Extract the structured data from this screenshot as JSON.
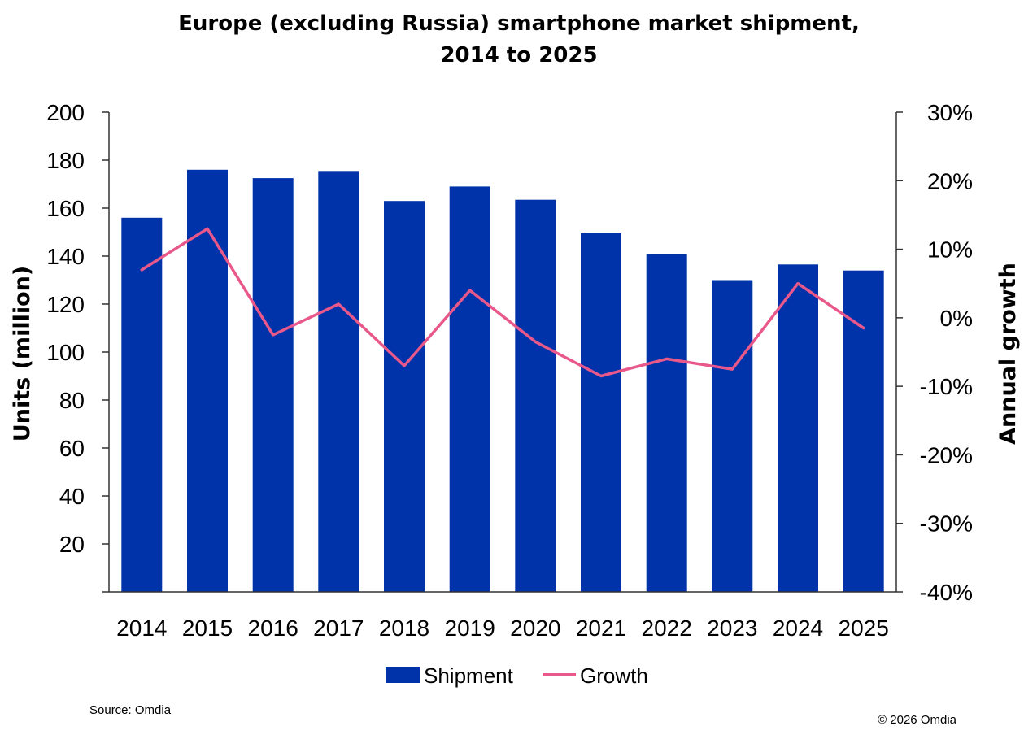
{
  "chart_data": {
    "type": "bar",
    "title_line1": "Europe (excluding Russia) smartphone market shipment,",
    "title_line2": "2014 to 2025",
    "categories": [
      "2014",
      "2015",
      "2016",
      "2017",
      "2018",
      "2019",
      "2020",
      "2021",
      "2022",
      "2023",
      "2024",
      "2025"
    ],
    "series": [
      {
        "name": "Shipment",
        "type": "bar",
        "axis": "left",
        "values": [
          156,
          176,
          172.5,
          175.5,
          163,
          169,
          163.5,
          149.5,
          141,
          130,
          136.5,
          134
        ]
      },
      {
        "name": "Growth",
        "type": "line",
        "axis": "right",
        "values": [
          7,
          13,
          -2.5,
          2,
          -7,
          4,
          -3.5,
          -8.5,
          -6,
          -7.5,
          5,
          -1.5
        ]
      }
    ],
    "ylabel": "Units (million)",
    "ylim": [
      0,
      200
    ],
    "y_ticks": [
      20,
      40,
      60,
      80,
      100,
      120,
      140,
      160,
      180,
      200
    ],
    "y2label": "Annual growth",
    "y2lim": [
      -40,
      30
    ],
    "y2_ticks": [
      -40,
      -30,
      -20,
      -10,
      0,
      10,
      20,
      30
    ],
    "y2_tick_labels": [
      "-40%",
      "-30%",
      "-20%",
      "-10%",
      "0%",
      "10%",
      "20%",
      "30%"
    ],
    "legend": {
      "position": "bottom-center",
      "labels": [
        "Shipment",
        "Growth"
      ]
    },
    "grid": false,
    "colors": {
      "bar": "#0033AA",
      "line": "#E8588A",
      "axis": "#333333"
    }
  },
  "footer": {
    "source": "Source: Omdia",
    "copyright": "© 2026 Omdia"
  }
}
